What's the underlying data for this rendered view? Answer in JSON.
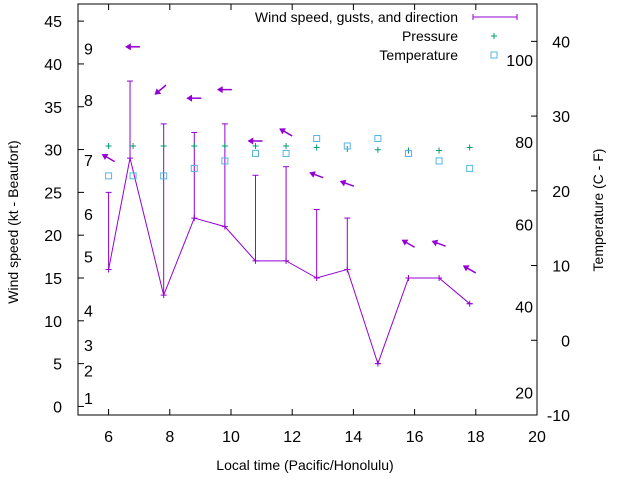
{
  "chart_data": {
    "type": "line",
    "xlabel": "Local time (Pacific/Honolulu)",
    "ylabel": "Wind speed (kt - Beaufort)",
    "y2label": "Temperature (C - F)",
    "xlim": [
      5,
      20
    ],
    "ylim": [
      -1,
      47
    ],
    "y2lim": [
      -10,
      45
    ],
    "x_ticks": [
      6,
      8,
      10,
      12,
      14,
      16,
      18,
      20
    ],
    "y_ticks": [
      0,
      5,
      10,
      15,
      20,
      25,
      30,
      35,
      40,
      45
    ],
    "y2_ticks": [
      -10,
      0,
      10,
      20,
      30,
      40
    ],
    "beaufort_labels": [
      {
        "text": "1",
        "y": 1
      },
      {
        "text": "2",
        "y": 4.2
      },
      {
        "text": "3",
        "y": 7.2
      },
      {
        "text": "4",
        "y": 11.2
      },
      {
        "text": "5",
        "y": 17.5
      },
      {
        "text": "6",
        "y": 22.5
      },
      {
        "text": "7",
        "y": 28.8
      },
      {
        "text": "8",
        "y": 35.8
      },
      {
        "text": "9",
        "y": 41.8
      }
    ],
    "fahrenheit_labels": [
      {
        "text": "20",
        "y2": -7
      },
      {
        "text": "40",
        "y2": 4.5
      },
      {
        "text": "60",
        "y2": 15.5
      },
      {
        "text": "80",
        "y2": 26.5
      },
      {
        "text": "100",
        "y2": 37.5
      }
    ],
    "legend": {
      "placement": "top-right",
      "wind_label": "Wind speed, gusts, and direction",
      "pressure_label": "Pressure",
      "temperature_label": "Temperature"
    },
    "colors": {
      "wind": "#9400d3",
      "pressure": "#009e73",
      "temperature": "#56b4e9"
    },
    "wind": {
      "x": [
        6,
        6.7,
        7.8,
        8.8,
        9.8,
        10.8,
        11.8,
        12.8,
        13.8,
        14.8,
        15.8,
        16.8,
        17.8
      ],
      "speed": [
        16,
        29,
        13,
        22,
        21,
        17,
        17,
        15,
        16,
        5,
        15,
        15,
        12
      ],
      "gust": [
        25,
        38,
        33,
        32,
        33,
        27,
        28,
        23,
        22,
        5,
        15,
        15,
        12
      ]
    },
    "direction_arrows": [
      {
        "x": 6,
        "y": 29,
        "angle": 150
      },
      {
        "x": 6.8,
        "y": 42,
        "angle": 180
      },
      {
        "x": 7.7,
        "y": 37,
        "angle": 220
      },
      {
        "x": 8.8,
        "y": 36,
        "angle": 180
      },
      {
        "x": 9.8,
        "y": 37,
        "angle": 180
      },
      {
        "x": 10.8,
        "y": 31,
        "angle": 180
      },
      {
        "x": 11.8,
        "y": 32,
        "angle": 150
      },
      {
        "x": 12.8,
        "y": 27,
        "angle": 160
      },
      {
        "x": 13.8,
        "y": 26,
        "angle": 160
      },
      {
        "x": 15.8,
        "y": 19,
        "angle": 150
      },
      {
        "x": 16.8,
        "y": 19,
        "angle": 160
      },
      {
        "x": 17.8,
        "y": 16,
        "angle": 150
      }
    ],
    "pressure": {
      "x": [
        6,
        6.8,
        7.8,
        8.8,
        9.8,
        10.8,
        11.8,
        12.8,
        13.8,
        14.8,
        15.8,
        16.8,
        17.8
      ],
      "y2": [
        26,
        26,
        26,
        26,
        26,
        26,
        26,
        25.8,
        25.6,
        25.5,
        25.4,
        25.4,
        25.8
      ]
    },
    "temperature": {
      "x": [
        6,
        6.8,
        7.8,
        8.8,
        9.8,
        10.8,
        11.8,
        12.8,
        13.8,
        14.8,
        15.8,
        16.8,
        17.8
      ],
      "y2": [
        22,
        22,
        22,
        23,
        24,
        25,
        25,
        27,
        26,
        27,
        25,
        24,
        23
      ]
    }
  }
}
